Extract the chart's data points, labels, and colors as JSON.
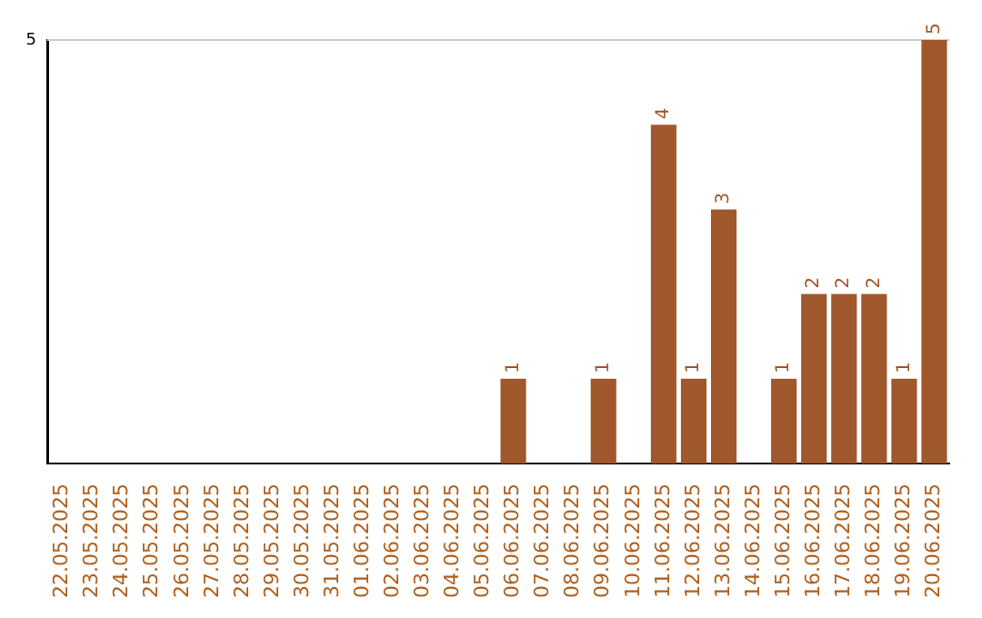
{
  "chart_data": {
    "type": "bar",
    "categories": [
      "22.05.2025",
      "23.05.2025",
      "24.05.2025",
      "25.05.2025",
      "26.05.2025",
      "27.05.2025",
      "28.05.2025",
      "29.05.2025",
      "30.05.2025",
      "31.05.2025",
      "01.06.2025",
      "02.06.2025",
      "03.06.2025",
      "04.06.2025",
      "05.06.2025",
      "06.06.2025",
      "07.06.2025",
      "08.06.2025",
      "09.06.2025",
      "10.06.2025",
      "11.06.2025",
      "12.06.2025",
      "13.06.2025",
      "14.06.2025",
      "15.06.2025",
      "16.06.2025",
      "17.06.2025",
      "18.06.2025",
      "19.06.2025",
      "20.06.2025"
    ],
    "values": [
      null,
      null,
      null,
      null,
      null,
      null,
      null,
      null,
      null,
      null,
      null,
      null,
      null,
      null,
      null,
      1,
      null,
      null,
      1,
      null,
      4,
      1,
      3,
      null,
      1,
      2,
      2,
      2,
      1,
      5
    ],
    "data_labels": true,
    "color": "#a0572b",
    "ylim": [
      0,
      5
    ],
    "yticks": [
      5
    ],
    "ref_lines": [
      {
        "axis": "y",
        "value": 5,
        "color": "#cccccc"
      }
    ]
  }
}
